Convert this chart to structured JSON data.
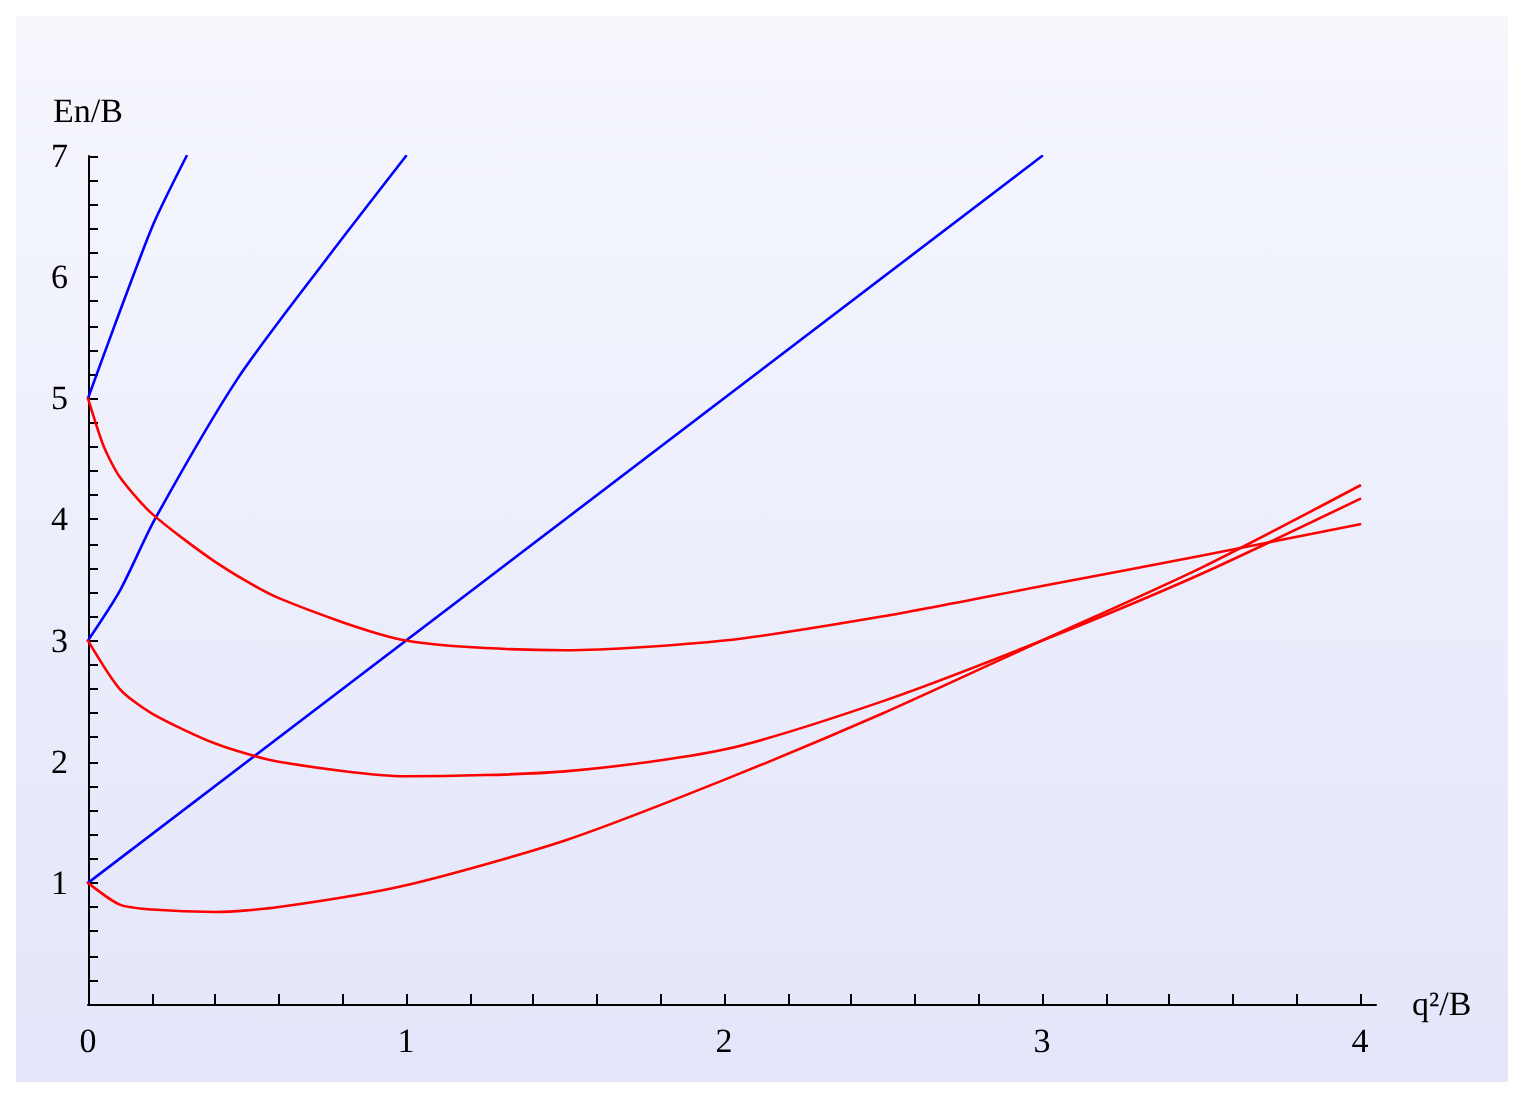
{
  "chart_data": {
    "type": "line",
    "xlabel": "q²/B",
    "ylabel": "En/B",
    "xlim": [
      0,
      4.05
    ],
    "ylim": [
      0,
      7
    ],
    "xticks": [
      0,
      {
        "value": 0.2,
        "label": null
      },
      {
        "value": 0.4,
        "label": null
      },
      {
        "value": 0.6,
        "label": null
      },
      {
        "value": 0.8,
        "label": null
      },
      1,
      {
        "value": 1.2,
        "label": null
      },
      {
        "value": 1.4,
        "label": null
      },
      {
        "value": 1.6,
        "label": null
      },
      {
        "value": 1.8,
        "label": null
      },
      2,
      {
        "value": 2.2,
        "label": null
      },
      {
        "value": 2.4,
        "label": null
      },
      {
        "value": 2.6,
        "label": null
      },
      {
        "value": 2.8,
        "label": null
      },
      3,
      {
        "value": 3.2,
        "label": null
      },
      {
        "value": 3.4,
        "label": null
      },
      {
        "value": 3.6,
        "label": null
      },
      {
        "value": 3.8,
        "label": null
      },
      4
    ],
    "yticks": [
      {
        "value": 0.2,
        "label": null
      },
      {
        "value": 0.4,
        "label": null
      },
      {
        "value": 0.6,
        "label": null
      },
      {
        "value": 0.8,
        "label": null
      },
      1,
      {
        "value": 1.2,
        "label": null
      },
      {
        "value": 1.4,
        "label": null
      },
      {
        "value": 1.6,
        "label": null
      },
      {
        "value": 1.8,
        "label": null
      },
      2,
      {
        "value": 2.2,
        "label": null
      },
      {
        "value": 2.4,
        "label": null
      },
      {
        "value": 2.6,
        "label": null
      },
      {
        "value": 2.8,
        "label": null
      },
      3,
      {
        "value": 3.2,
        "label": null
      },
      {
        "value": 3.4,
        "label": null
      },
      {
        "value": 3.6,
        "label": null
      },
      {
        "value": 3.8,
        "label": null
      },
      4,
      {
        "value": 4.2,
        "label": null
      },
      {
        "value": 4.4,
        "label": null
      },
      {
        "value": 4.6,
        "label": null
      },
      {
        "value": 4.8,
        "label": null
      },
      5,
      {
        "value": 5.2,
        "label": null
      },
      {
        "value": 5.4,
        "label": null
      },
      {
        "value": 5.6,
        "label": null
      },
      {
        "value": 5.8,
        "label": null
      },
      6,
      {
        "value": 6.2,
        "label": null
      },
      {
        "value": 6.4,
        "label": null
      },
      {
        "value": 6.6,
        "label": null
      },
      {
        "value": 6.8,
        "label": null
      },
      7
    ],
    "grid": false,
    "marker": "none",
    "line_style": "solid",
    "series": [
      {
        "color": "#0000ff",
        "x": [
          0,
          3
        ],
        "values": [
          1,
          7
        ]
      },
      {
        "color": "#0000ff",
        "x": [
          0,
          0.1,
          0.21,
          0.47,
          0.75,
          1
        ],
        "values": [
          3,
          3.41,
          4,
          5.16,
          6.15,
          7
        ]
      },
      {
        "color": "#0000ff",
        "x": [
          0,
          0.085,
          0.206,
          0.31
        ],
        "values": [
          5,
          5.61,
          6.44,
          7
        ]
      },
      {
        "color": "#ff0000",
        "x": [
          0,
          0.1,
          0.2,
          0.4,
          0.6,
          1,
          1.5,
          2,
          2.5,
          3,
          3.5,
          4
        ],
        "values": [
          1,
          0.82,
          0.78,
          0.76,
          0.8,
          0.98,
          1.35,
          1.85,
          2.4,
          3,
          3.6,
          4.28
        ]
      },
      {
        "color": "#ff0000",
        "x": [
          0,
          0.1,
          0.2,
          0.4,
          0.6,
          1,
          1.5,
          2,
          2.5,
          3,
          3.5,
          4
        ],
        "values": [
          3,
          2.6,
          2.4,
          2.15,
          2,
          1.88,
          1.92,
          2.1,
          2.5,
          3,
          3.55,
          4.17
        ]
      },
      {
        "color": "#ff0000",
        "x": [
          0,
          0.05,
          0.1,
          0.2,
          0.4,
          0.6,
          1,
          1.5,
          2,
          2.5,
          3,
          3.5,
          4
        ],
        "values": [
          5,
          4.6,
          4.35,
          4.05,
          3.65,
          3.35,
          3,
          2.92,
          3,
          3.2,
          3.45,
          3.7,
          3.96
        ]
      }
    ]
  }
}
